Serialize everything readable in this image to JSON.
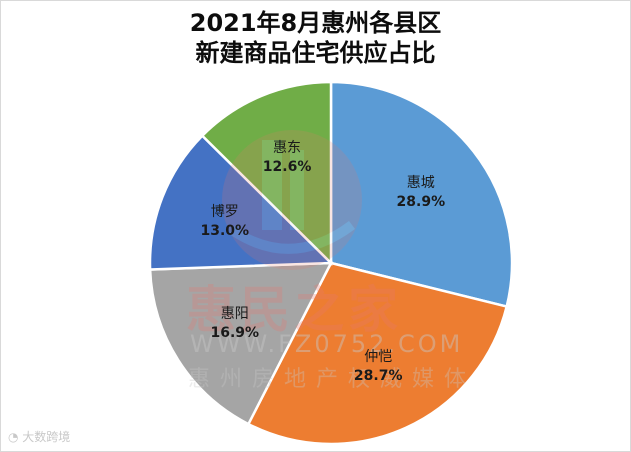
{
  "chart_data": {
    "type": "pie",
    "title": "2021年8月惠州各县区新建商品住宅供应占比",
    "title_lines": [
      "2021年8月惠州各县区",
      "新建商品住宅供应占比"
    ],
    "start_angle_deg": 0,
    "direction": "clockwise",
    "categories": [
      "惠城",
      "仲恺",
      "惠阳",
      "博罗",
      "惠东"
    ],
    "values": [
      28.9,
      28.7,
      16.9,
      13.0,
      12.6
    ],
    "unit": "%",
    "colors": [
      "#5b9bd5",
      "#ed7d31",
      "#a5a5a5",
      "#4472c4",
      "#70ad47"
    ],
    "labels": [
      {
        "name": "惠城",
        "value": "28.9%"
      },
      {
        "name": "仲恺",
        "value": "28.7%"
      },
      {
        "name": "惠阳",
        "value": "16.9%"
      },
      {
        "name": "博罗",
        "value": "13.0%"
      },
      {
        "name": "惠东",
        "value": "12.6%"
      }
    ],
    "legend": "none",
    "data_labels": "inside"
  },
  "watermark": {
    "brand": "惠民之家",
    "url": "WWW.FZ0752.COM",
    "tagline": "惠州房地产权威媒体"
  },
  "source": {
    "label": "大数跨境"
  }
}
